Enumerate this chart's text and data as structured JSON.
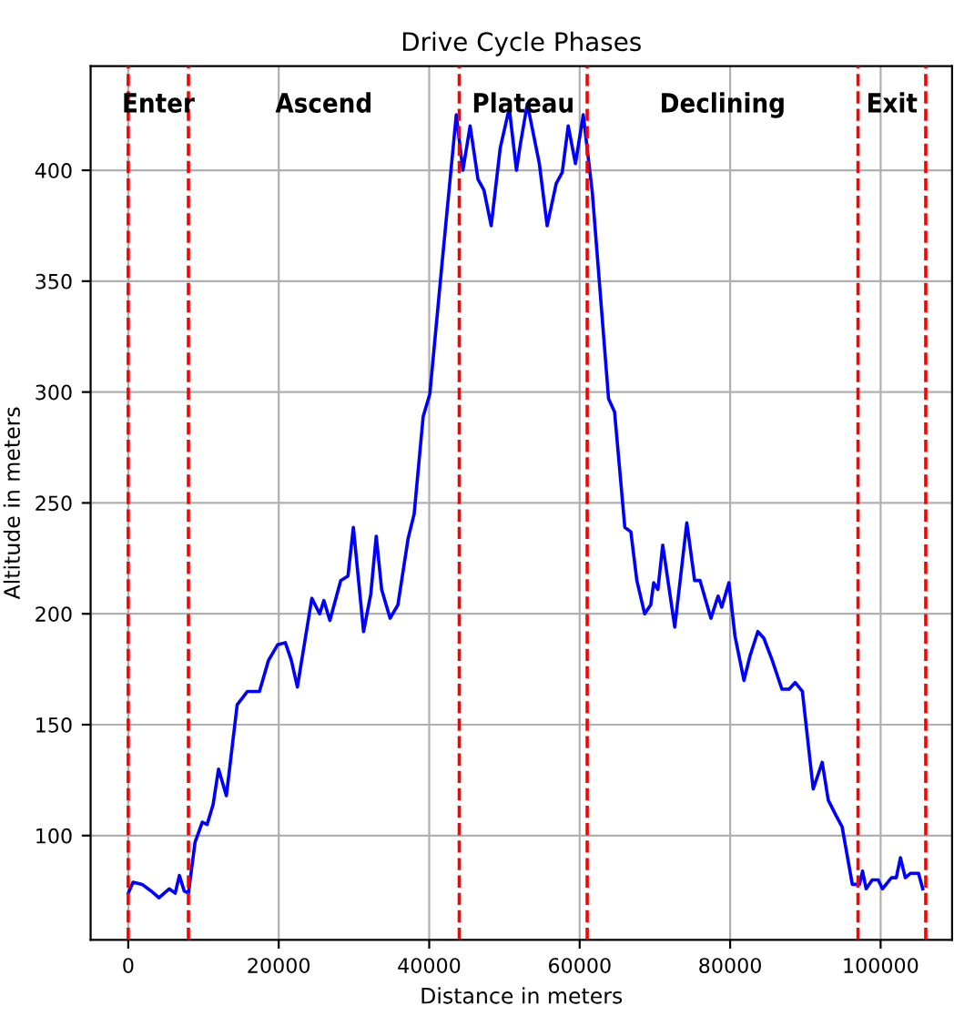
{
  "chart_data": {
    "type": "line",
    "title": "Drive Cycle Phases",
    "xlabel": "Distance in meters",
    "ylabel": "Altitude in meters",
    "xlim": [
      -5000,
      109500
    ],
    "ylim": [
      53,
      447
    ],
    "xticks": [
      0,
      20000,
      40000,
      60000,
      80000,
      100000
    ],
    "yticks": [
      100,
      150,
      200,
      250,
      300,
      350,
      400
    ],
    "grid": true,
    "line_style": "solid",
    "marker": "none",
    "series": [
      {
        "color": "#0000ff",
        "x": [
          0,
          640,
          1840,
          3040,
          4080,
          5440,
          6240,
          6800,
          7440,
          8000,
          8880,
          9840,
          10480,
          11280,
          12000,
          13040,
          14480,
          15840,
          17440,
          18640,
          19840,
          20880,
          21680,
          22480,
          24400,
          25440,
          26000,
          26800,
          28240,
          29200,
          29920,
          31280,
          32240,
          32960,
          33680,
          34800,
          35840,
          37200,
          38000,
          39200,
          40080,
          41680,
          43600,
          44480,
          45440,
          46480,
          47280,
          48240,
          49440,
          50640,
          51600,
          52080,
          53040,
          54640,
          55680,
          56880,
          57680,
          58480,
          59440,
          60480,
          61680,
          63840,
          64640,
          66000,
          66800,
          67600,
          68640,
          69440,
          69840,
          70400,
          71040,
          72640,
          74240,
          75280,
          76000,
          77440,
          78400,
          78880,
          79840,
          80640,
          81840,
          82640,
          83680,
          84480,
          85600,
          86880,
          87840,
          88640,
          89600,
          91040,
          92240,
          93040,
          94080,
          94880,
          96240,
          97200,
          97600,
          98080,
          98880,
          99680,
          100240,
          101440,
          102080,
          102640,
          103280,
          104000,
          105040,
          105600
        ],
        "values": [
          74,
          79,
          78,
          75,
          72,
          76,
          74,
          82,
          75,
          74,
          97,
          106,
          105,
          114,
          130,
          118,
          159,
          165,
          165,
          179,
          186,
          187,
          179,
          167,
          207,
          200,
          206,
          197,
          215,
          217,
          239,
          192,
          209,
          235,
          211,
          198,
          204,
          234,
          245,
          289,
          299,
          357,
          425,
          400,
          420,
          396,
          391,
          375,
          410,
          428,
          400,
          411,
          430,
          403,
          375,
          394,
          399,
          420,
          403,
          425,
          390,
          297,
          291,
          239,
          237,
          215,
          200,
          204,
          214,
          211,
          231,
          194,
          241,
          215,
          215,
          198,
          208,
          203,
          214,
          190,
          170,
          181,
          192,
          189,
          179,
          166,
          166,
          169,
          165,
          121,
          133,
          116,
          109,
          104,
          78,
          78,
          84,
          76,
          80,
          80,
          76,
          81,
          81,
          90,
          81,
          83,
          83,
          76
        ]
      }
    ],
    "ref_lines": [
      {
        "axis": "x",
        "value": 0,
        "color": "#ff0000",
        "line_style": "dashed"
      },
      {
        "axis": "x",
        "value": 8000,
        "color": "#ff0000",
        "line_style": "dashed"
      },
      {
        "axis": "x",
        "value": 44000,
        "color": "#ff0000",
        "line_style": "dashed"
      },
      {
        "axis": "x",
        "value": 61000,
        "color": "#ff0000",
        "line_style": "dashed"
      },
      {
        "axis": "x",
        "value": 97000,
        "color": "#ff0000",
        "line_style": "dashed"
      },
      {
        "axis": "x",
        "value": 106000,
        "color": "#ff0000",
        "line_style": "dashed"
      }
    ],
    "annotations": [
      "Enter",
      "Ascend",
      "Plateau",
      "Declining",
      "Exit"
    ]
  }
}
